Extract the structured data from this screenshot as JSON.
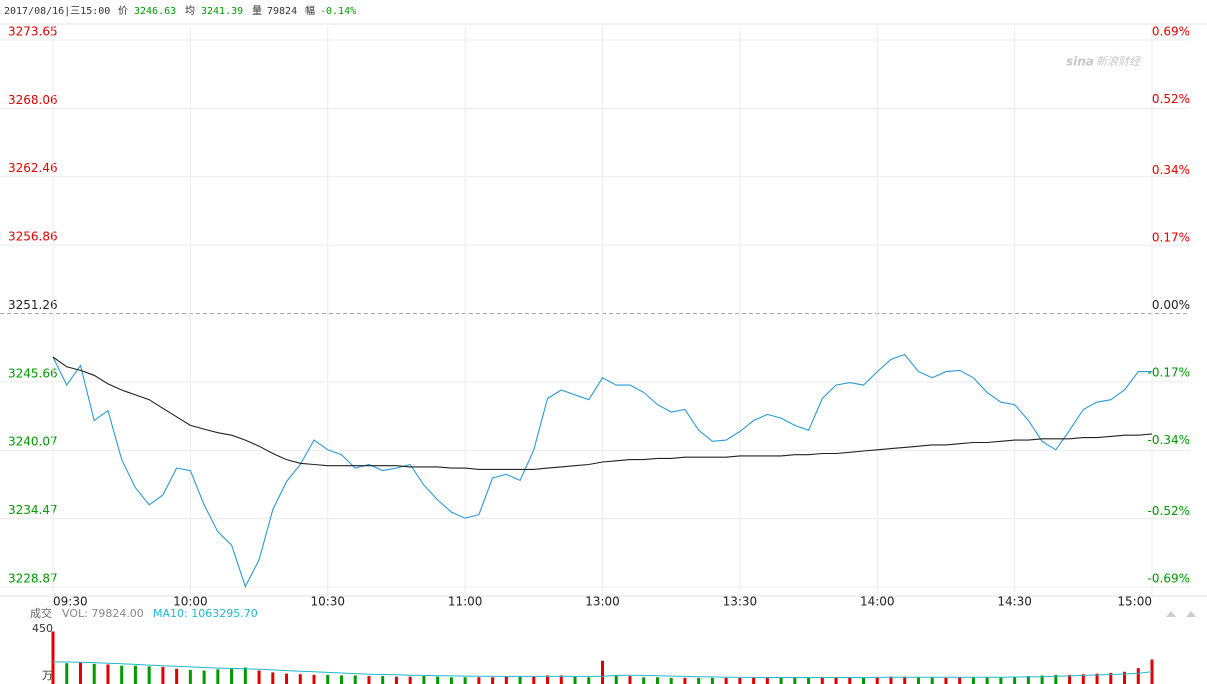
{
  "header": {
    "datetime": "2017/08/16|三15:00",
    "price_label": "价",
    "price": "3246.63",
    "avg_label": "均",
    "avg": "3241.39",
    "vol_label": "量",
    "vol": "79824",
    "chg_label": "幅",
    "chg": "-0.14%"
  },
  "watermark": {
    "logo": "sina",
    "text": "新浪财经"
  },
  "chart_data": [
    {
      "type": "line",
      "x": [
        0,
        3,
        6,
        9,
        12,
        15,
        18,
        21,
        24,
        27,
        30,
        33,
        36,
        39,
        42,
        45,
        48,
        51,
        54,
        57,
        60,
        63,
        66,
        69,
        72,
        75,
        78,
        81,
        84,
        87,
        90,
        93,
        96,
        99,
        102,
        105,
        108,
        111,
        114,
        117,
        120,
        123,
        126,
        129,
        132,
        135,
        138,
        141,
        144,
        147,
        150,
        153,
        156,
        159,
        162,
        165,
        168,
        171,
        174,
        177,
        180,
        183,
        186,
        189,
        192,
        195,
        198,
        201,
        204,
        207,
        210,
        213,
        216,
        219,
        222,
        225,
        228,
        231,
        234,
        237,
        240
      ],
      "series": [
        {
          "name": "价",
          "color": "#2a9ad6",
          "values": [
            3247.7,
            3245.4,
            3247.0,
            3242.5,
            3243.3,
            3239.3,
            3237.0,
            3235.6,
            3236.4,
            3238.6,
            3238.4,
            3235.6,
            3233.4,
            3232.3,
            3228.9,
            3231.1,
            3235.2,
            3237.5,
            3238.9,
            3240.9,
            3240.1,
            3239.7,
            3238.6,
            3238.9,
            3238.4,
            3238.6,
            3238.9,
            3237.2,
            3236.0,
            3235.0,
            3234.5,
            3234.8,
            3237.8,
            3238.1,
            3237.6,
            3240.1,
            3244.3,
            3245.0,
            3244.6,
            3244.2,
            3246.0,
            3245.4,
            3245.4,
            3244.8,
            3243.8,
            3243.2,
            3243.4,
            3241.7,
            3240.8,
            3240.9,
            3241.6,
            3242.5,
            3243.0,
            3242.7,
            3242.1,
            3241.7,
            3244.3,
            3245.4,
            3245.6,
            3245.4,
            3246.5,
            3247.5,
            3247.9,
            3246.5,
            3246.0,
            3246.5,
            3246.6,
            3246.0,
            3244.8,
            3244.0,
            3243.8,
            3242.5,
            3240.8,
            3240.1,
            3241.7,
            3243.4,
            3244.0,
            3244.2,
            3245.0,
            3246.5,
            3246.5
          ]
        },
        {
          "name": "均",
          "color": "#222222",
          "values": [
            3247.7,
            3246.9,
            3246.6,
            3246.2,
            3245.5,
            3245.0,
            3244.6,
            3244.2,
            3243.5,
            3242.8,
            3242.1,
            3241.8,
            3241.5,
            3241.3,
            3240.9,
            3240.4,
            3239.8,
            3239.3,
            3239.0,
            3238.9,
            3238.8,
            3238.8,
            3238.8,
            3238.8,
            3238.8,
            3238.8,
            3238.7,
            3238.7,
            3238.7,
            3238.6,
            3238.6,
            3238.5,
            3238.5,
            3238.5,
            3238.5,
            3238.5,
            3238.6,
            3238.7,
            3238.8,
            3238.9,
            3239.1,
            3239.2,
            3239.3,
            3239.3,
            3239.4,
            3239.4,
            3239.5,
            3239.5,
            3239.5,
            3239.5,
            3239.6,
            3239.6,
            3239.6,
            3239.6,
            3239.7,
            3239.7,
            3239.8,
            3239.8,
            3239.9,
            3240.0,
            3240.1,
            3240.2,
            3240.3,
            3240.4,
            3240.5,
            3240.5,
            3240.6,
            3240.7,
            3240.7,
            3240.8,
            3240.9,
            3240.9,
            3241.0,
            3241.0,
            3241.0,
            3241.1,
            3241.1,
            3241.2,
            3241.3,
            3241.3,
            3241.4
          ]
        }
      ],
      "xlim": [
        0,
        240
      ],
      "xticks": [
        {
          "value": 0,
          "label": "09:30"
        },
        {
          "value": 30,
          "label": "10:00"
        },
        {
          "value": 60,
          "label": "10:30"
        },
        {
          "value": 90,
          "label": "11:00"
        },
        {
          "value": 120,
          "label": "13:00"
        },
        {
          "value": 150,
          "label": "13:30"
        },
        {
          "value": 180,
          "label": "14:00"
        },
        {
          "value": 210,
          "label": "14:30"
        },
        {
          "value": 240,
          "label": "15:00"
        }
      ],
      "ylim": [
        3228.87,
        3273.65
      ],
      "yticks": [
        3273.65,
        3268.06,
        3262.46,
        3256.86,
        3251.26,
        3245.66,
        3240.07,
        3234.47,
        3228.87
      ],
      "y2lim": [
        -0.69,
        0.69
      ],
      "y2ticks": [
        {
          "value": 0.69,
          "label": "0.69%"
        },
        {
          "value": 0.52,
          "label": "0.52%"
        },
        {
          "value": 0.34,
          "label": "0.34%"
        },
        {
          "value": 0.17,
          "label": "0.17%"
        },
        {
          "value": 0,
          "label": "0.00%"
        },
        {
          "value": -0.17,
          "label": "-0.17%"
        },
        {
          "value": -0.34,
          "label": "-0.34%"
        },
        {
          "value": -0.52,
          "label": "-0.52%"
        },
        {
          "value": -0.69,
          "label": "-0.69%"
        }
      ],
      "up_color": "#e00000",
      "down_color": "#009900",
      "flat_color": "#222222",
      "grid": true
    },
    {
      "type": "bar",
      "title": "成交",
      "vol_text": "VOL: 79824.00",
      "ma_text": "MA10: 1063295.70",
      "unit": "万",
      "x": [
        0,
        3,
        6,
        9,
        12,
        15,
        18,
        21,
        24,
        27,
        30,
        33,
        36,
        39,
        42,
        45,
        48,
        51,
        54,
        57,
        60,
        63,
        66,
        69,
        72,
        75,
        78,
        81,
        84,
        87,
        90,
        93,
        96,
        99,
        102,
        105,
        108,
        111,
        114,
        117,
        120,
        123,
        126,
        129,
        132,
        135,
        138,
        141,
        144,
        147,
        150,
        153,
        156,
        159,
        162,
        165,
        168,
        171,
        174,
        177,
        180,
        183,
        186,
        189,
        192,
        195,
        198,
        201,
        204,
        207,
        210,
        213,
        216,
        219,
        222,
        225,
        228,
        231,
        234,
        237,
        240
      ],
      "series": [
        {
          "name": "VOL",
          "values": [
            430,
            170,
            175,
            165,
            160,
            150,
            150,
            145,
            140,
            125,
            115,
            110,
            120,
            130,
            135,
            110,
            95,
            85,
            80,
            75,
            75,
            70,
            70,
            65,
            65,
            60,
            60,
            65,
            60,
            55,
            55,
            55,
            55,
            60,
            60,
            65,
            70,
            70,
            60,
            55,
            190,
            70,
            65,
            55,
            55,
            50,
            50,
            50,
            50,
            50,
            50,
            50,
            55,
            55,
            50,
            50,
            55,
            55,
            55,
            55,
            55,
            60,
            60,
            55,
            55,
            50,
            55,
            55,
            55,
            55,
            60,
            65,
            70,
            75,
            75,
            80,
            85,
            90,
            100,
            130,
            200
          ]
        },
        {
          "name": "MA10",
          "color": "#22b8cc",
          "values": [
            180,
            180,
            178,
            175,
            170,
            165,
            160,
            155,
            150,
            145,
            140,
            135,
            130,
            128,
            125,
            120,
            115,
            110,
            105,
            100,
            95,
            90,
            85,
            80,
            78,
            75,
            72,
            70,
            68,
            66,
            65,
            64,
            63,
            62,
            62,
            62,
            62,
            62,
            62,
            62,
            62,
            70,
            72,
            70,
            68,
            65,
            62,
            60,
            58,
            56,
            55,
            54,
            53,
            53,
            53,
            53,
            53,
            53,
            53,
            53,
            54,
            55,
            55,
            55,
            56,
            56,
            56,
            56,
            56,
            56,
            57,
            58,
            60,
            63,
            66,
            70,
            74,
            78,
            82,
            88,
            100
          ]
        }
      ],
      "ylim": [
        0,
        450
      ],
      "yticks": [
        450
      ]
    }
  ]
}
